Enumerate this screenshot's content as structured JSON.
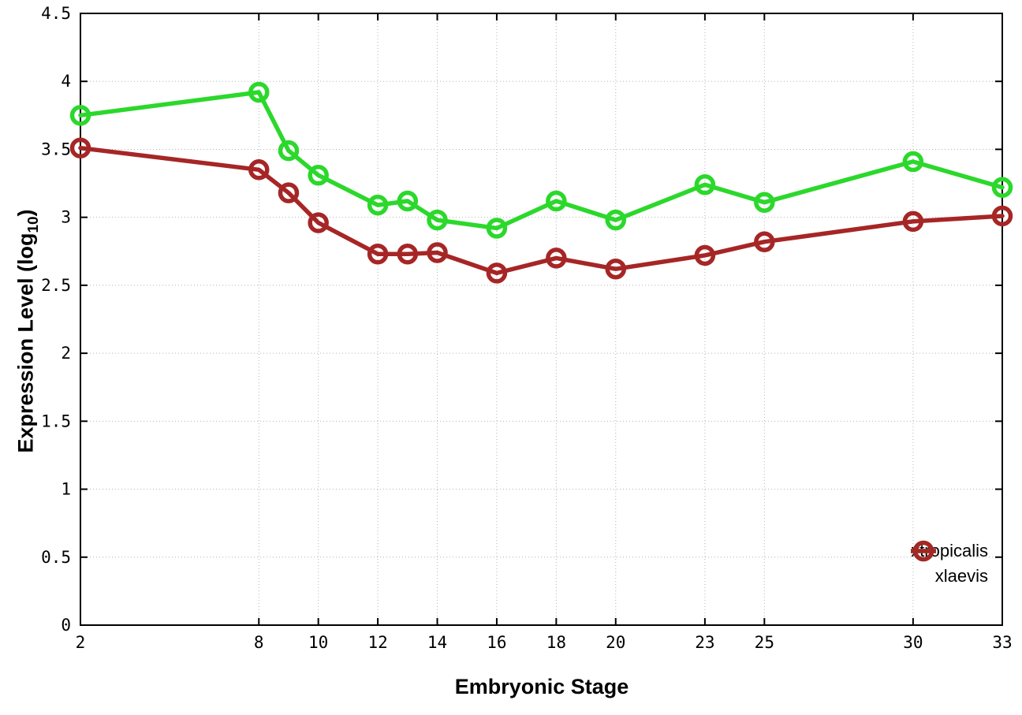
{
  "chart_data": {
    "type": "line",
    "title": "",
    "xlabel": "Embryonic Stage",
    "ylabel": "Expression Level (log10)",
    "ylabel_main": "Expression Level (log",
    "ylabel_sub": "10",
    "ylabel_close": ")",
    "xlim": [
      2,
      33
    ],
    "ylim": [
      0,
      4.5
    ],
    "xticks": [
      2,
      8,
      10,
      12,
      14,
      16,
      18,
      20,
      23,
      25,
      30,
      33
    ],
    "yticks": [
      0,
      0.5,
      1,
      1.5,
      2,
      2.5,
      3,
      3.5,
      4,
      4.5
    ],
    "grid": true,
    "legend_position": "inside-bottom-right",
    "x": [
      2,
      8,
      9,
      10,
      12,
      13,
      14,
      16,
      18,
      20,
      23,
      25,
      30,
      33
    ],
    "series": [
      {
        "name": "xtropicalis",
        "color": "#2bd82b",
        "values": [
          3.75,
          3.92,
          3.49,
          3.31,
          3.09,
          3.12,
          2.98,
          2.92,
          3.12,
          2.98,
          3.24,
          3.11,
          3.41,
          3.22
        ]
      },
      {
        "name": "xlaevis",
        "color": "#a62626",
        "values": [
          3.51,
          3.35,
          3.18,
          2.96,
          2.73,
          2.73,
          2.74,
          2.59,
          2.7,
          2.62,
          2.72,
          2.82,
          2.97,
          3.01
        ]
      }
    ]
  },
  "colors": {
    "background": "#ffffff",
    "axis": "#000000",
    "grid": "#b4b4b4"
  }
}
